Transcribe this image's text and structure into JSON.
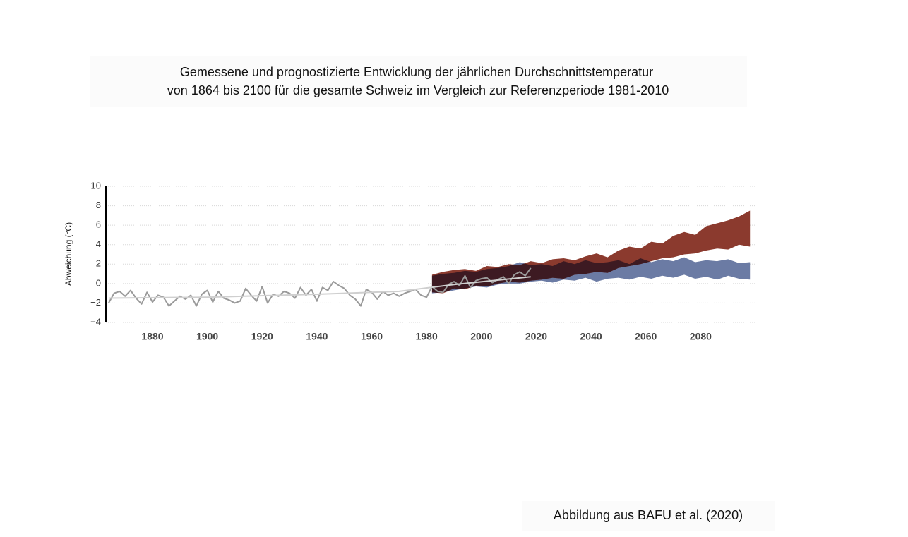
{
  "chart_data": {
    "type": "line",
    "title": "Gemessene und prognostizierte Entwicklung der jährlichen Durchschnittstemperatur",
    "subtitle": "von 1864 bis 2100 für die gesamte Schweiz im Vergleich zur Referenzperiode 1981-2010",
    "y_label": "Abweichung (°C)",
    "source": "Abbildung aus BAFU et al. (2020)",
    "xlim": [
      1863,
      2100
    ],
    "ylim": [
      -4,
      10
    ],
    "xticks": [
      1880,
      1900,
      1920,
      1940,
      1960,
      1980,
      2000,
      2020,
      2040,
      2060,
      2080
    ],
    "yticks": [
      {
        "value": -4,
        "label": "−4"
      },
      {
        "value": -2,
        "label": "−2"
      },
      0,
      2,
      4,
      6,
      8,
      10
    ],
    "grid": true,
    "series": [
      {
        "kind": "band",
        "color": "#6b7ba4",
        "x": [
          1982,
          1986,
          1990,
          1994,
          1998,
          2002,
          2006,
          2010,
          2014,
          2018,
          2022,
          2026,
          2030,
          2034,
          2038,
          2042,
          2046,
          2050,
          2054,
          2058,
          2062,
          2066,
          2070,
          2074,
          2078,
          2082,
          2086,
          2090,
          2094,
          2098
        ],
        "lower": [
          -1.0,
          -0.9,
          -0.7,
          -0.5,
          -0.3,
          -0.4,
          -0.1,
          0.0,
          0.0,
          0.2,
          0.3,
          0.1,
          0.4,
          0.3,
          0.6,
          0.2,
          0.5,
          0.6,
          0.4,
          0.7,
          0.5,
          0.8,
          0.6,
          0.9,
          0.5,
          0.7,
          0.4,
          0.8,
          0.5,
          0.4
        ],
        "upper": [
          0.8,
          1.0,
          1.1,
          1.3,
          1.2,
          1.5,
          1.6,
          1.8,
          2.2,
          1.9,
          2.0,
          1.8,
          2.3,
          2.0,
          2.4,
          2.1,
          2.2,
          2.4,
          2.0,
          2.6,
          2.2,
          2.5,
          2.3,
          2.7,
          2.2,
          2.4,
          2.3,
          2.5,
          2.1,
          2.2
        ]
      },
      {
        "kind": "band",
        "color": "#8b3a2e",
        "overlap_color": "#3d1a22",
        "x": [
          1982,
          1986,
          1990,
          1994,
          1998,
          2002,
          2006,
          2010,
          2014,
          2018,
          2022,
          2026,
          2030,
          2034,
          2038,
          2042,
          2046,
          2050,
          2054,
          2058,
          2062,
          2066,
          2070,
          2074,
          2078,
          2082,
          2086,
          2090,
          2094,
          2098
        ],
        "lower": [
          -0.9,
          -1.0,
          -0.5,
          -0.6,
          -0.2,
          -0.3,
          0.0,
          0.2,
          0.1,
          0.3,
          0.4,
          0.6,
          0.5,
          0.9,
          1.0,
          1.2,
          1.1,
          1.6,
          1.8,
          2.0,
          2.3,
          2.6,
          2.7,
          3.0,
          3.1,
          3.4,
          3.6,
          3.5,
          4.0,
          3.8
        ],
        "upper": [
          0.9,
          1.2,
          1.4,
          1.5,
          1.3,
          1.8,
          1.7,
          2.0,
          1.9,
          2.3,
          2.1,
          2.5,
          2.6,
          2.4,
          2.8,
          3.1,
          2.7,
          3.4,
          3.8,
          3.6,
          4.3,
          4.1,
          4.9,
          5.3,
          5.0,
          5.9,
          6.2,
          6.5,
          6.9,
          7.5
        ]
      },
      {
        "kind": "line",
        "color": "#9a9a9a",
        "x": [
          1864,
          1866,
          1868,
          1870,
          1872,
          1874,
          1876,
          1878,
          1880,
          1882,
          1884,
          1886,
          1888,
          1890,
          1892,
          1894,
          1896,
          1898,
          1900,
          1902,
          1904,
          1906,
          1908,
          1910,
          1912,
          1914,
          1916,
          1918,
          1920,
          1922,
          1924,
          1926,
          1928,
          1930,
          1932,
          1934,
          1936,
          1938,
          1940,
          1942,
          1944,
          1946,
          1948,
          1950,
          1952,
          1954,
          1956,
          1958,
          1960,
          1962,
          1964,
          1966,
          1968,
          1970,
          1972,
          1974,
          1976,
          1978,
          1980,
          1982,
          1984,
          1986,
          1988,
          1990,
          1992,
          1994,
          1996,
          1998,
          2000,
          2002,
          2004,
          2006,
          2008,
          2010,
          2012,
          2014,
          2016,
          2018
        ],
        "values": [
          -2.0,
          -1.0,
          -0.8,
          -1.3,
          -0.7,
          -1.5,
          -2.1,
          -0.9,
          -1.9,
          -1.2,
          -1.4,
          -2.3,
          -1.8,
          -1.3,
          -1.6,
          -1.2,
          -2.3,
          -1.1,
          -0.7,
          -1.9,
          -0.8,
          -1.5,
          -1.7,
          -2.0,
          -1.8,
          -0.5,
          -1.2,
          -1.8,
          -0.3,
          -2.0,
          -1.1,
          -1.3,
          -0.8,
          -1.0,
          -1.5,
          -0.4,
          -1.2,
          -0.6,
          -1.8,
          -0.4,
          -0.7,
          0.2,
          -0.2,
          -0.5,
          -1.2,
          -1.6,
          -2.3,
          -0.6,
          -0.9,
          -1.6,
          -0.8,
          -1.2,
          -1.0,
          -1.3,
          -1.0,
          -0.8,
          -0.6,
          -1.2,
          -1.4,
          -0.3,
          -0.8,
          -0.9,
          -0.1,
          0.2,
          -0.2,
          0.8,
          -0.4,
          0.3,
          0.5,
          0.6,
          0.1,
          0.4,
          0.7,
          0.0,
          0.9,
          1.2,
          0.8,
          1.6
        ]
      },
      {
        "kind": "line",
        "color": "#cfcfcf",
        "x": [
          1864,
          1900,
          1940,
          1970,
          1990,
          2018
        ],
        "values": [
          -1.5,
          -1.4,
          -1.1,
          -0.8,
          -0.1,
          0.7
        ]
      }
    ]
  }
}
